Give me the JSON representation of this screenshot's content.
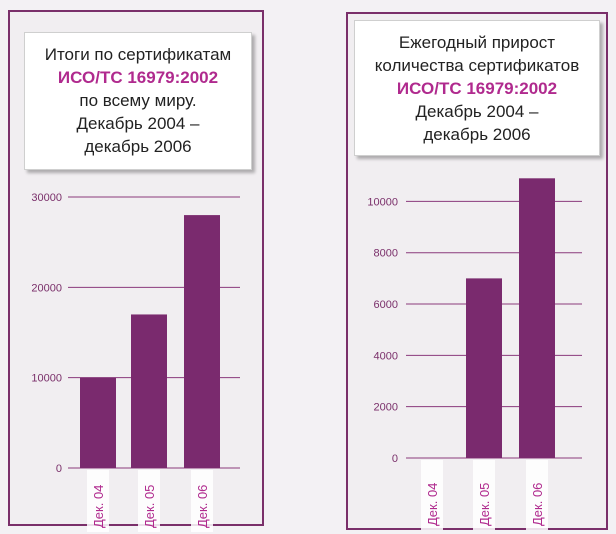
{
  "colors": {
    "bar": "#7a2a6e",
    "grid": "#8a3a7c",
    "accent": "#b02a8e",
    "frame": "#7a2f6a"
  },
  "left": {
    "title_lines": [
      "Итоги по сертификатам",
      "ИСО/ТС 16979:2002",
      "по всему миру.",
      "Декабрь 2004 –",
      "декабрь 2006"
    ]
  },
  "right": {
    "title_lines": [
      "Ежегодный прирост",
      "количества сертификатов",
      "ИСО/ТС 16979:2002",
      "Декабрь 2004 –",
      "декабрь 2006"
    ]
  },
  "chart_data": [
    {
      "type": "bar",
      "categories": [
        "Дек. 04",
        "Дек. 05",
        "Дек. 06"
      ],
      "values": [
        10000,
        17000,
        28000
      ],
      "yticks": [
        "0",
        "10000",
        "20000",
        "30000"
      ],
      "ylim": [
        0,
        31000
      ],
      "grid": true,
      "title": "Итоги по сертификатам ИСО/ТС 16979:2002 по всему миру. Декабрь 2004 – декабрь 2006"
    },
    {
      "type": "bar",
      "categories": [
        "Дек. 04",
        "Дек. 05",
        "Дек. 06"
      ],
      "values": [
        0,
        7000,
        10900
      ],
      "yticks": [
        "0",
        "2000",
        "4000",
        "6000",
        "8000",
        "10000"
      ],
      "ylim": [
        0,
        10600
      ],
      "grid": true,
      "title": "Ежегодный прирост количества сертификатов ИСО/ТС 16979:2002 Декабрь 2004 – декабрь 2006"
    }
  ]
}
